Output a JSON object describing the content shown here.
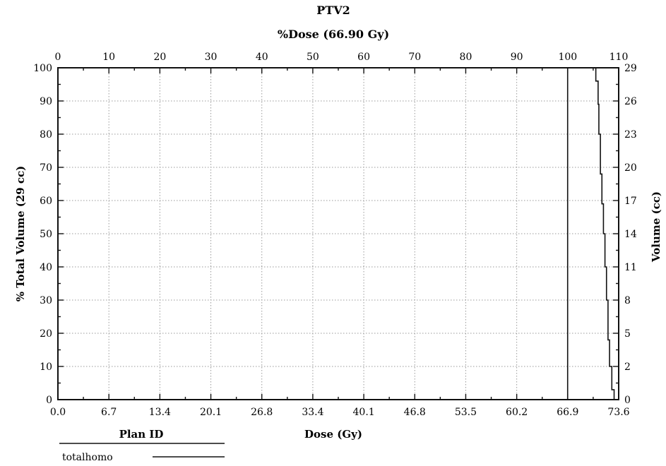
{
  "chart_data": {
    "type": "line",
    "title": "PTV2",
    "top_axis_label": "%Dose (66.90 Gy)",
    "xlabel": "Dose (Gy)",
    "ylabel": "% Total Volume (29 cc)",
    "right_axis_label": "Volume (cc)",
    "x_tick_labels": [
      "0.0",
      "6.7",
      "13.4",
      "20.1",
      "26.8",
      "33.4",
      "40.1",
      "46.8",
      "53.5",
      "60.2",
      "66.9",
      "73.6"
    ],
    "top_tick_labels": [
      "0",
      "10",
      "20",
      "30",
      "40",
      "50",
      "60",
      "70",
      "80",
      "90",
      "100",
      "110"
    ],
    "y_tick_labels": [
      "0",
      "10",
      "20",
      "30",
      "40",
      "50",
      "60",
      "70",
      "80",
      "90",
      "100"
    ],
    "right_tick_labels": [
      "0",
      "2",
      "5",
      "8",
      "11",
      "14",
      "17",
      "20",
      "23",
      "26",
      "29"
    ],
    "xlim": [
      0,
      73.6
    ],
    "ylim": [
      0,
      100
    ],
    "grid": true,
    "reference_line_x": 66.9,
    "series": [
      {
        "name": "totalhomo",
        "x": [
          70.0,
          70.6,
          70.9,
          71.0,
          71.2,
          71.4,
          71.6,
          71.8,
          72.0,
          72.2,
          72.4,
          72.7,
          73.0
        ],
        "y": [
          100,
          96,
          89,
          80,
          68,
          59,
          50,
          40,
          30,
          18,
          10,
          3,
          0
        ]
      }
    ],
    "legend": {
      "header": "Plan ID",
      "position": "bottom-left"
    }
  }
}
